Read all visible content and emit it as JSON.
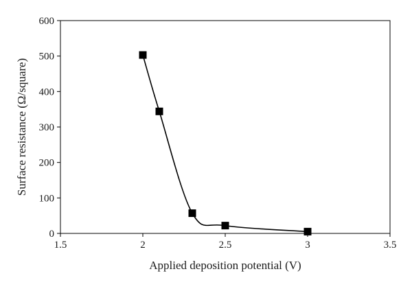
{
  "chart_data": {
    "type": "scatter",
    "title": "",
    "xlabel": "Applied deposition potential (V)",
    "ylabel": "Surface resistance (Ω/square)",
    "xlim": [
      1.5,
      3.5
    ],
    "ylim": [
      0,
      600
    ],
    "xticks": [
      1.5,
      2,
      2.5,
      3,
      3.5
    ],
    "xtick_labels": [
      "1.5",
      "2",
      "2.5",
      "3",
      "3.5"
    ],
    "yticks": [
      0,
      100,
      200,
      300,
      400,
      500,
      600
    ],
    "ytick_labels": [
      "0",
      "100",
      "200",
      "300",
      "400",
      "500",
      "600"
    ],
    "grid": false,
    "legend": "none",
    "marker": "square",
    "marker_color": "#000000",
    "line": "smooth",
    "line_color": "#000000",
    "series": [
      {
        "x": [
          2.0,
          2.1,
          2.3,
          2.5,
          3.0
        ],
        "y": [
          503,
          344,
          57,
          22,
          5
        ]
      }
    ]
  }
}
